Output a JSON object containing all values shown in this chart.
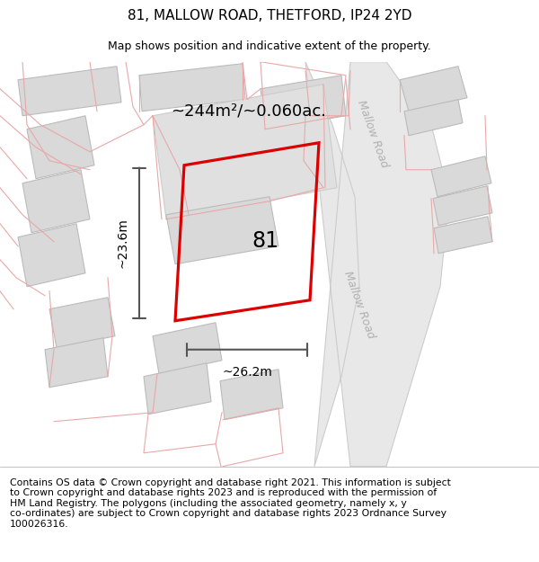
{
  "title": "81, MALLOW ROAD, THETFORD, IP24 2YD",
  "subtitle": "Map shows position and indicative extent of the property.",
  "footer": "Contains OS data © Crown copyright and database right 2021. This information is subject\nto Crown copyright and database rights 2023 and is reproduced with the permission of\nHM Land Registry. The polygons (including the associated geometry, namely x, y\nco-ordinates) are subject to Crown copyright and database rights 2023 Ordnance Survey\n100026316.",
  "area_label": "~244m²/~0.060ac.",
  "property_number": "81",
  "dim_width": "~26.2m",
  "dim_height": "~23.6m",
  "map_bg": "#f8f7f7",
  "plot_outline_color": "#dd0000",
  "building_fill": "#d9d9d9",
  "building_stroke": "#bbbbbb",
  "parcel_stroke": "#e8a8a8",
  "road_fill": "#ffffff",
  "road_stroke": "#cccccc",
  "road_label_color": "#b0b0b0",
  "road_label": "Mallow Road",
  "title_fontsize": 11,
  "subtitle_fontsize": 9,
  "footer_fontsize": 7.8,
  "dim_fontsize": 10,
  "area_fontsize": 13,
  "label_fontsize": 17
}
